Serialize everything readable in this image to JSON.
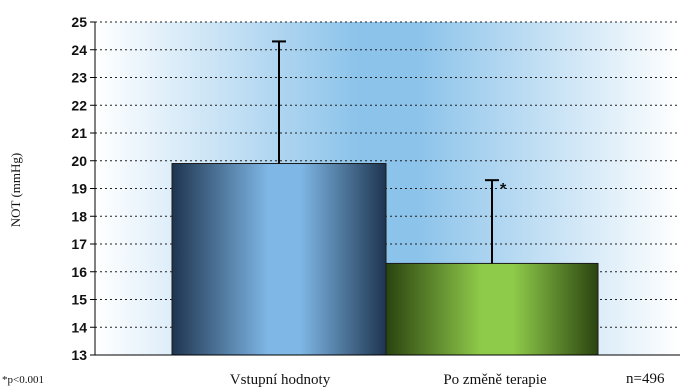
{
  "chart_data": {
    "type": "bar",
    "categories": [
      "Vstupní hodnoty",
      "Po změně terapie"
    ],
    "values": [
      19.9,
      16.3
    ],
    "error_upper": [
      24.3,
      19.3
    ],
    "ylabel": "NOT (mmHg)",
    "ylim": [
      13,
      25
    ],
    "yticks": [
      13,
      14,
      15,
      16,
      17,
      18,
      19,
      20,
      21,
      22,
      23,
      24,
      25
    ],
    "grid": true,
    "annotations": {
      "significance_marker": "*",
      "footnote": "*p<0.001",
      "sample_size": "n=496"
    },
    "colors": {
      "bar1": "#5b9bd5",
      "bar2": "#7ab83c",
      "background_center": "#8cc3ea"
    }
  }
}
